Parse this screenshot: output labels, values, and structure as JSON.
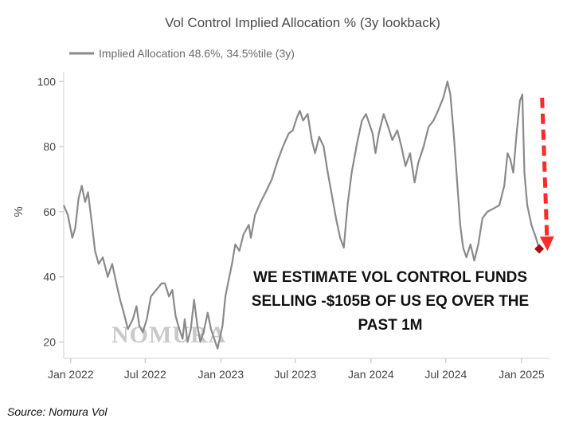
{
  "chart_data": {
    "type": "line",
    "title": "Vol Control Implied Allocation % (3y lookback)",
    "ylabel": "%",
    "xlabel": "",
    "ylim": [
      15,
      103
    ],
    "yticks": [
      20,
      40,
      60,
      80,
      100
    ],
    "xlim": [
      "2021-12-15",
      "2025-03-10"
    ],
    "xticks": [
      {
        "date": "2022-01-01",
        "label": "Jan 2022"
      },
      {
        "date": "2022-07-01",
        "label": "Jul 2022"
      },
      {
        "date": "2023-01-01",
        "label": "Jan 2023"
      },
      {
        "date": "2023-07-01",
        "label": "Jul 2023"
      },
      {
        "date": "2024-01-01",
        "label": "Jan 2024"
      },
      {
        "date": "2024-07-01",
        "label": "Jul 2024"
      },
      {
        "date": "2025-01-01",
        "label": "Jan 2025"
      }
    ],
    "grid": false,
    "legend_position": "top-left",
    "series": [
      {
        "name": "Implied Allocation 48.6%, 34.5%tile (3y)",
        "color": "#8a8a8a",
        "points": [
          [
            "2021-12-15",
            62
          ],
          [
            "2021-12-25",
            59
          ],
          [
            "2022-01-05",
            52
          ],
          [
            "2022-01-12",
            55
          ],
          [
            "2022-01-20",
            64
          ],
          [
            "2022-01-28",
            68
          ],
          [
            "2022-02-05",
            63
          ],
          [
            "2022-02-12",
            66
          ],
          [
            "2022-02-22",
            56
          ],
          [
            "2022-03-01",
            48
          ],
          [
            "2022-03-10",
            44
          ],
          [
            "2022-03-20",
            46
          ],
          [
            "2022-04-01",
            40
          ],
          [
            "2022-04-12",
            44
          ],
          [
            "2022-04-22",
            38
          ],
          [
            "2022-05-01",
            33
          ],
          [
            "2022-05-10",
            29
          ],
          [
            "2022-05-20",
            24
          ],
          [
            "2022-06-01",
            27
          ],
          [
            "2022-06-10",
            31
          ],
          [
            "2022-06-17",
            25
          ],
          [
            "2022-06-25",
            23
          ],
          [
            "2022-07-05",
            27
          ],
          [
            "2022-07-15",
            34
          ],
          [
            "2022-07-28",
            36
          ],
          [
            "2022-08-10",
            38
          ],
          [
            "2022-08-18",
            38
          ],
          [
            "2022-08-28",
            34
          ],
          [
            "2022-09-05",
            36
          ],
          [
            "2022-09-13",
            28
          ],
          [
            "2022-09-22",
            24
          ],
          [
            "2022-09-30",
            21
          ],
          [
            "2022-10-05",
            27
          ],
          [
            "2022-10-12",
            20
          ],
          [
            "2022-10-20",
            24
          ],
          [
            "2022-10-28",
            33
          ],
          [
            "2022-11-05",
            25
          ],
          [
            "2022-11-12",
            20
          ],
          [
            "2022-11-20",
            23
          ],
          [
            "2022-11-30",
            29
          ],
          [
            "2022-12-08",
            24
          ],
          [
            "2022-12-16",
            21
          ],
          [
            "2022-12-24",
            18
          ],
          [
            "2023-01-05",
            25
          ],
          [
            "2023-01-12",
            34
          ],
          [
            "2023-01-20",
            39
          ],
          [
            "2023-01-28",
            44
          ],
          [
            "2023-02-05",
            50
          ],
          [
            "2023-02-15",
            48
          ],
          [
            "2023-02-25",
            53
          ],
          [
            "2023-03-10",
            56
          ],
          [
            "2023-03-15",
            52
          ],
          [
            "2023-03-25",
            59
          ],
          [
            "2023-04-08",
            63
          ],
          [
            "2023-04-20",
            66
          ],
          [
            "2023-05-05",
            70
          ],
          [
            "2023-05-20",
            76
          ],
          [
            "2023-06-01",
            80
          ],
          [
            "2023-06-15",
            84
          ],
          [
            "2023-06-25",
            85
          ],
          [
            "2023-07-05",
            89
          ],
          [
            "2023-07-12",
            91
          ],
          [
            "2023-07-20",
            88
          ],
          [
            "2023-07-31",
            90
          ],
          [
            "2023-08-10",
            82
          ],
          [
            "2023-08-18",
            78
          ],
          [
            "2023-08-28",
            83
          ],
          [
            "2023-09-08",
            80
          ],
          [
            "2023-09-18",
            72
          ],
          [
            "2023-09-28",
            65
          ],
          [
            "2023-10-08",
            58
          ],
          [
            "2023-10-18",
            52
          ],
          [
            "2023-10-27",
            49
          ],
          [
            "2023-11-05",
            62
          ],
          [
            "2023-11-15",
            72
          ],
          [
            "2023-11-28",
            81
          ],
          [
            "2023-12-10",
            88
          ],
          [
            "2023-12-20",
            90
          ],
          [
            "2024-01-05",
            84
          ],
          [
            "2024-01-12",
            78
          ],
          [
            "2024-01-20",
            84
          ],
          [
            "2024-02-01",
            90
          ],
          [
            "2024-02-12",
            86
          ],
          [
            "2024-02-22",
            82
          ],
          [
            "2024-03-05",
            85
          ],
          [
            "2024-03-15",
            80
          ],
          [
            "2024-03-25",
            74
          ],
          [
            "2024-04-05",
            78
          ],
          [
            "2024-04-16",
            69
          ],
          [
            "2024-04-25",
            75
          ],
          [
            "2024-05-08",
            80
          ],
          [
            "2024-05-20",
            86
          ],
          [
            "2024-06-01",
            88
          ],
          [
            "2024-06-12",
            91
          ],
          [
            "2024-06-25",
            95
          ],
          [
            "2024-07-05",
            100
          ],
          [
            "2024-07-12",
            96
          ],
          [
            "2024-07-20",
            84
          ],
          [
            "2024-07-28",
            70
          ],
          [
            "2024-08-05",
            56
          ],
          [
            "2024-08-12",
            49
          ],
          [
            "2024-08-20",
            46
          ],
          [
            "2024-08-30",
            50
          ],
          [
            "2024-09-08",
            45
          ],
          [
            "2024-09-18",
            50
          ],
          [
            "2024-09-28",
            58
          ],
          [
            "2024-10-10",
            60
          ],
          [
            "2024-10-25",
            61
          ],
          [
            "2024-11-08",
            62
          ],
          [
            "2024-11-20",
            68
          ],
          [
            "2024-11-28",
            78
          ],
          [
            "2024-12-05",
            76
          ],
          [
            "2024-12-12",
            72
          ],
          [
            "2024-12-20",
            84
          ],
          [
            "2024-12-28",
            94
          ],
          [
            "2025-01-03",
            96
          ],
          [
            "2025-01-08",
            72
          ],
          [
            "2025-01-15",
            62
          ],
          [
            "2025-01-25",
            56
          ],
          [
            "2025-02-05",
            52
          ],
          [
            "2025-02-13",
            48.6
          ]
        ]
      }
    ],
    "highlight_point": {
      "date": "2025-02-13",
      "value": 48.6,
      "color": "#a50f15"
    },
    "trend_arrow": {
      "color": "#ff2b2b",
      "from": [
        "2025-02-20",
        95
      ],
      "to": [
        "2025-03-05",
        48
      ]
    },
    "annotation": [
      "WE ESTIMATE VOL CONTROL FUNDS",
      "SELLING -$105B OF US EQ OVER THE",
      "PAST 1M"
    ],
    "watermark": "NOMURA"
  },
  "source": "Source: Nomura Vol"
}
